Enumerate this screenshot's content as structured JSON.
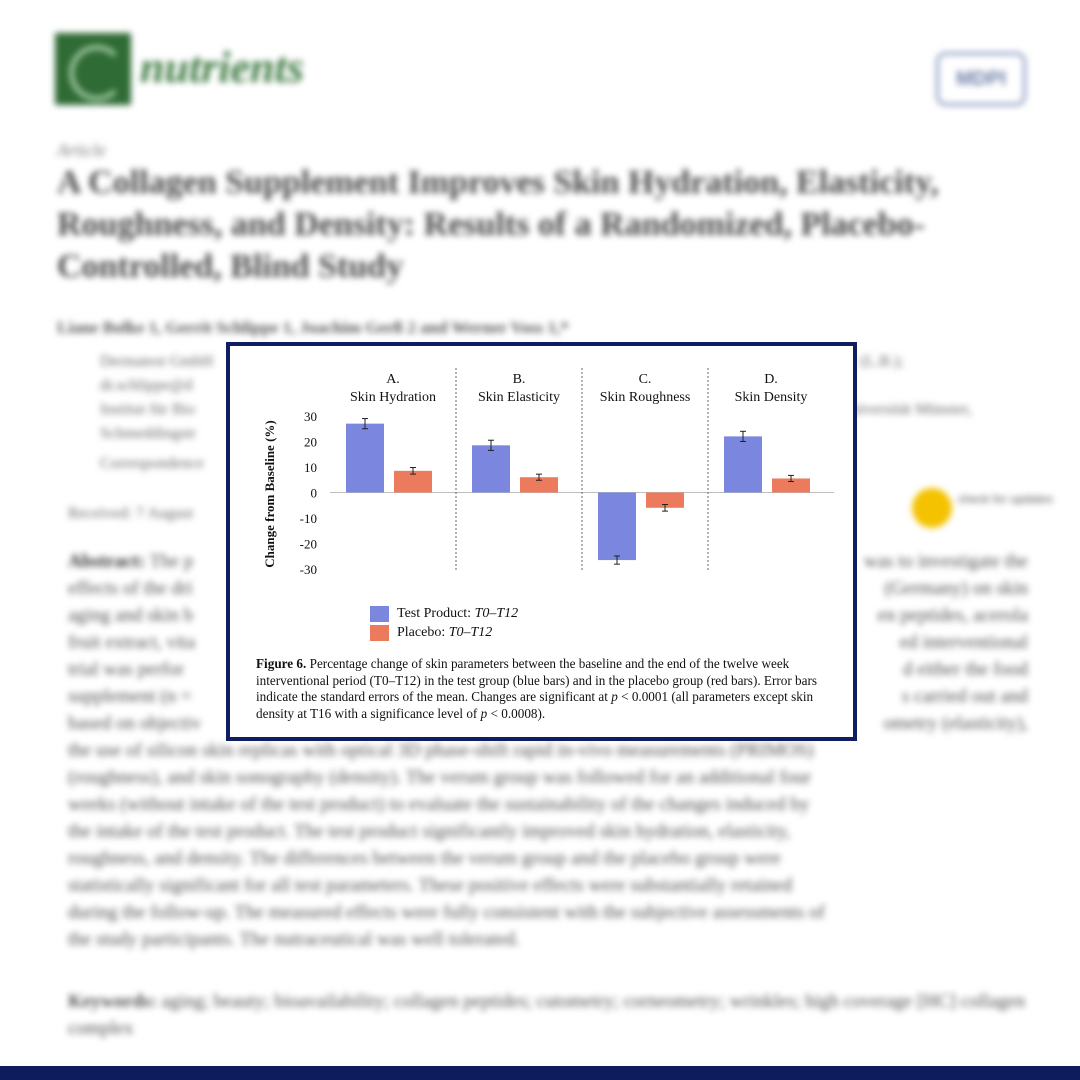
{
  "article": {
    "journal": "nutrients",
    "publisher": "MDPI",
    "type_label": "Article",
    "title": "A Collagen Supplement Improves Skin Hydration, Elasticity, Roughness, and Density: Results of a Randomized, Placebo-Controlled, Blind Study",
    "authors": "Liane Bolke 1, Gerrit Schlippe 1, Joachim Gerß 2 and Werner Voss 1,*",
    "affil_1_start": "Dermatest GmbH",
    "affil_1_end": "(L.B.);",
    "affil_1_line2": "dr.schlippe@d",
    "affil_2_start": "Institut für Bio",
    "affil_2_end": "Universität Münster,",
    "affil_2_line2": "Schmeddingstr",
    "affil_3": "Correspondence",
    "received": "Received: 7 August",
    "crossmark": "check for updates",
    "abstract_label": "Abstract:",
    "abstract_l1": "The p",
    "abstract_l1_end": "was to investigate the",
    "abstract_l2": "effects of the dri",
    "abstract_l2_end": "(Germany) on skin",
    "abstract_l3": "aging and skin b",
    "abstract_l3_end": "en peptides, acerola",
    "abstract_l4": "fruit extract, vita",
    "abstract_l4_end": "ed interventional",
    "abstract_l5": "trial was perfor",
    "abstract_l5_end": "d either the food",
    "abstract_l6": "supplement (n = ",
    "abstract_l6_end": "s carried out and",
    "abstract_l7": "based on objectiv",
    "abstract_l7_end": "ometry (elasticity),",
    "abstract_l8": "the use of silicon skin replicas with optical 3D phase-shift rapid in-vivo measurements (PRIMOS)",
    "abstract_l9": "(roughness), and skin sonography (density). The verum group was followed for an additional four",
    "abstract_l10": "weeks (without intake of the test product) to evaluate the sustainability of the changes induced by",
    "abstract_l11": "the intake of the test product. The test product significantly improved skin hydration, elasticity,",
    "abstract_l12": "roughness, and density. The differences between the verum group and the placebo group were",
    "abstract_l13": "statistically significant for all test parameters. These positive effects were substantially retained",
    "abstract_l14": "during the follow-up. The measured effects were fully consistent with the subjective assessments of",
    "abstract_l15": "the study participants. The nutraceutical was well tolerated.",
    "keywords_label": "Keywords:",
    "keywords": "aging; beauty; bioavailability; collagen peptides; cutometry; corneometry; wrinkles; high coverage [HC] collagen complex"
  },
  "colors": {
    "test_bar": "#7b86de",
    "placebo_bar": "#ec7a5c",
    "frame": "#0f1d63",
    "journal_green": "#3f7b43"
  },
  "chart_data": {
    "type": "bar",
    "ylabel": "Change from Baseline (%)",
    "ylim": [
      -30,
      30
    ],
    "yticks": [
      30,
      20,
      10,
      0,
      -10,
      -20,
      -30
    ],
    "ytick_labels": [
      "30",
      "20",
      "10",
      "0",
      "-10",
      "-20",
      "-30"
    ],
    "grid": false,
    "legend_position": "bottom-left",
    "panels": [
      {
        "letter": "A.",
        "title": "Skin Hydration",
        "test": 27,
        "test_err": 2.0,
        "placebo": 8.5,
        "placebo_err": 1.3
      },
      {
        "letter": "B.",
        "title": "Skin Elasticity",
        "test": 18.5,
        "test_err": 2.0,
        "placebo": 6,
        "placebo_err": 1.2
      },
      {
        "letter": "C.",
        "title": "Skin Roughness",
        "test": -26.5,
        "test_err": 1.6,
        "placebo": -6,
        "placebo_err": 1.3
      },
      {
        "letter": "D.",
        "title": "Skin Density",
        "test": 22,
        "test_err": 2.0,
        "placebo": 5.5,
        "placebo_err": 1.2
      }
    ],
    "series": [
      {
        "name": "Test Product: T0–T12",
        "color": "#7b86de"
      },
      {
        "name": "Placebo: T0–T12",
        "color": "#ec7a5c"
      }
    ]
  },
  "legend": {
    "test_prefix": "Test Product: ",
    "test_period": "T0–T12",
    "placebo_prefix": "Placebo: ",
    "placebo_period": "T0–T12"
  },
  "caption": {
    "label": "Figure 6.",
    "part1": " Percentage change of skin parameters between the baseline and the end of the twelve week interventional period (T0–T12) in the test group (blue bars) and in the placebo group (red bars). Error bars indicate the standard errors of the mean. Changes are significant at ",
    "p1": "p",
    "part2": " < 0.0001 (all parameters except skin density at T16 with a significance level of ",
    "p2": "p",
    "part3": " < 0.0008)."
  }
}
